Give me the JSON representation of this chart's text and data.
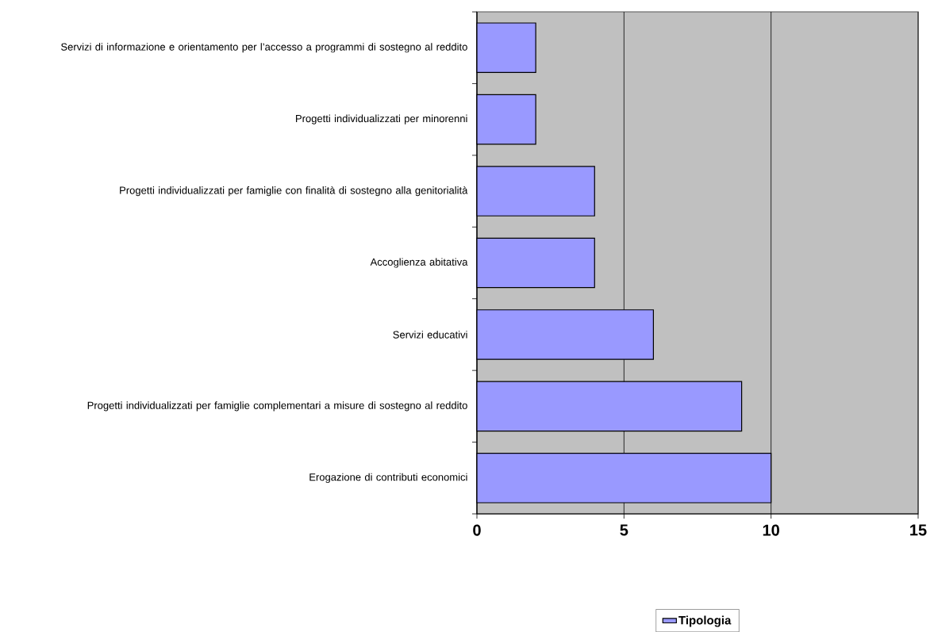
{
  "chart_data": {
    "type": "bar",
    "orientation": "horizontal",
    "categories": [
      "Servizi di informazione e orientamento per l’accesso a programmi di sostegno al reddito",
      "Progetti individualizzati per minorenni",
      "Progetti individualizzati per famiglie con finalità di sostegno alla genitorialità",
      "Accoglienza abitativa",
      "Servizi educativi",
      "Progetti individualizzati per famiglie complementari a misure di sostegno al reddito",
      "Erogazione di contributi economici"
    ],
    "series": [
      {
        "name": "Tipologia",
        "color": "#9999ff",
        "values": [
          2,
          2,
          4,
          4,
          6,
          9,
          10
        ]
      }
    ],
    "xlim": [
      0,
      15
    ],
    "xticks": [
      0,
      5,
      10,
      15
    ],
    "grid": "x",
    "legend": "bottom"
  }
}
